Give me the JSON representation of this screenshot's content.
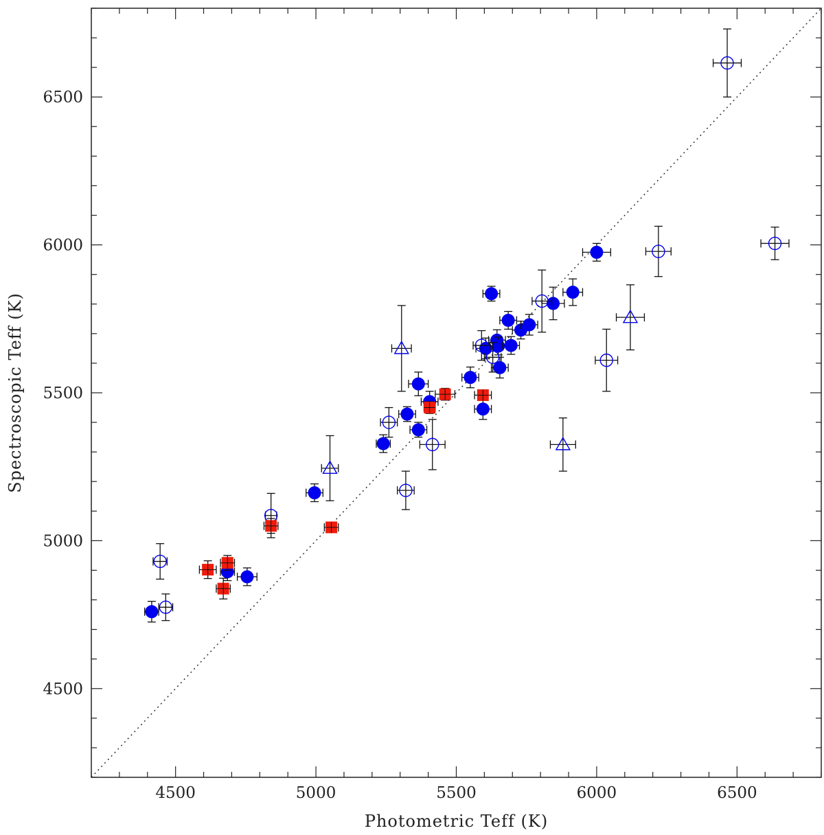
{
  "chart_data": {
    "type": "scatter",
    "title": "",
    "xlabel": "Photometric Teff (K)",
    "ylabel": "Spectroscopic Teff  (K)",
    "xlim": [
      4200,
      6800
    ],
    "ylim": [
      4200,
      6800
    ],
    "x_ticks": [
      4500,
      5000,
      5500,
      6000,
      6500
    ],
    "y_ticks": [
      4500,
      5000,
      5500,
      6000,
      6500
    ],
    "minor_tick_step": 100,
    "reference_line": {
      "label": "one-to-one",
      "style": "dotted"
    },
    "colors": {
      "blue": "#0000ee",
      "red": "#ee1c0c",
      "errorbar": "#111111",
      "axis": "#222222"
    },
    "series": [
      {
        "name": "filled circles",
        "marker": "filled-circle",
        "points": [
          {
            "x": 4415,
            "y": 4760,
            "xerr": 25,
            "yerr": 35
          },
          {
            "x": 4685,
            "y": 4895,
            "xerr": 25,
            "yerr": 30
          },
          {
            "x": 4755,
            "y": 4878,
            "xerr": 35,
            "yerr": 30
          },
          {
            "x": 4995,
            "y": 5162,
            "xerr": 30,
            "yerr": 30
          },
          {
            "x": 5240,
            "y": 5328,
            "xerr": 25,
            "yerr": 30
          },
          {
            "x": 5325,
            "y": 5428,
            "xerr": 30,
            "yerr": 25
          },
          {
            "x": 5365,
            "y": 5375,
            "xerr": 30,
            "yerr": 25
          },
          {
            "x": 5365,
            "y": 5530,
            "xerr": 35,
            "yerr": 40
          },
          {
            "x": 5405,
            "y": 5470,
            "xerr": 30,
            "yerr": 35
          },
          {
            "x": 5550,
            "y": 5552,
            "xerr": 30,
            "yerr": 35
          },
          {
            "x": 5595,
            "y": 5445,
            "xerr": 30,
            "yerr": 35
          },
          {
            "x": 5605,
            "y": 5650,
            "xerr": 35,
            "yerr": 35
          },
          {
            "x": 5625,
            "y": 5835,
            "xerr": 30,
            "yerr": 25
          },
          {
            "x": 5645,
            "y": 5678,
            "xerr": 30,
            "yerr": 35
          },
          {
            "x": 5655,
            "y": 5585,
            "xerr": 30,
            "yerr": 35
          },
          {
            "x": 5650,
            "y": 5658,
            "xerr": 30,
            "yerr": 30
          },
          {
            "x": 5685,
            "y": 5745,
            "xerr": 30,
            "yerr": 30
          },
          {
            "x": 5695,
            "y": 5660,
            "xerr": 30,
            "yerr": 30
          },
          {
            "x": 5730,
            "y": 5712,
            "xerr": 30,
            "yerr": 30
          },
          {
            "x": 5760,
            "y": 5730,
            "xerr": 30,
            "yerr": 35
          },
          {
            "x": 5845,
            "y": 5802,
            "xerr": 40,
            "yerr": 55
          },
          {
            "x": 5915,
            "y": 5840,
            "xerr": 35,
            "yerr": 45
          },
          {
            "x": 6000,
            "y": 5975,
            "xerr": 50,
            "yerr": 30
          }
        ]
      },
      {
        "name": "open circles",
        "marker": "open-circle",
        "points": [
          {
            "x": 4445,
            "y": 4930,
            "xerr": 25,
            "yerr": 60
          },
          {
            "x": 4465,
            "y": 4775,
            "xerr": 25,
            "yerr": 45
          },
          {
            "x": 4840,
            "y": 5085,
            "xerr": 20,
            "yerr": 75
          },
          {
            "x": 5260,
            "y": 5400,
            "xerr": 30,
            "yerr": 50
          },
          {
            "x": 5320,
            "y": 5170,
            "xerr": 30,
            "yerr": 65
          },
          {
            "x": 5415,
            "y": 5325,
            "xerr": 45,
            "yerr": 85
          },
          {
            "x": 5590,
            "y": 5660,
            "xerr": 30,
            "yerr": 50
          },
          {
            "x": 5630,
            "y": 5620,
            "xerr": 30,
            "yerr": 50
          },
          {
            "x": 5805,
            "y": 5810,
            "xerr": 35,
            "yerr": 105
          },
          {
            "x": 6035,
            "y": 5610,
            "xerr": 40,
            "yerr": 105
          },
          {
            "x": 6220,
            "y": 5978,
            "xerr": 45,
            "yerr": 85
          },
          {
            "x": 6465,
            "y": 6615,
            "xerr": 50,
            "yerr": 115
          },
          {
            "x": 6635,
            "y": 6005,
            "xerr": 50,
            "yerr": 55
          }
        ]
      },
      {
        "name": "open triangles",
        "marker": "open-triangle",
        "points": [
          {
            "x": 5050,
            "y": 5245,
            "xerr": 30,
            "yerr": 110
          },
          {
            "x": 5305,
            "y": 5650,
            "xerr": 35,
            "yerr": 145
          },
          {
            "x": 5880,
            "y": 5325,
            "xerr": 45,
            "yerr": 90
          },
          {
            "x": 6120,
            "y": 5755,
            "xerr": 50,
            "yerr": 110
          }
        ]
      },
      {
        "name": "filled squares",
        "marker": "filled-square",
        "points": [
          {
            "x": 4615,
            "y": 4902,
            "xerr": 30,
            "yerr": 30
          },
          {
            "x": 4670,
            "y": 4838,
            "xerr": 25,
            "yerr": 35
          },
          {
            "x": 4685,
            "y": 4925,
            "xerr": 25,
            "yerr": 25
          },
          {
            "x": 4840,
            "y": 5050,
            "xerr": 25,
            "yerr": 25
          },
          {
            "x": 5055,
            "y": 5045,
            "xerr": 25,
            "yerr": 15
          },
          {
            "x": 5405,
            "y": 5450,
            "xerr": 20,
            "yerr": 20
          },
          {
            "x": 5460,
            "y": 5495,
            "xerr": 35,
            "yerr": 20
          },
          {
            "x": 5595,
            "y": 5492,
            "xerr": 30,
            "yerr": 15
          }
        ]
      }
    ]
  }
}
